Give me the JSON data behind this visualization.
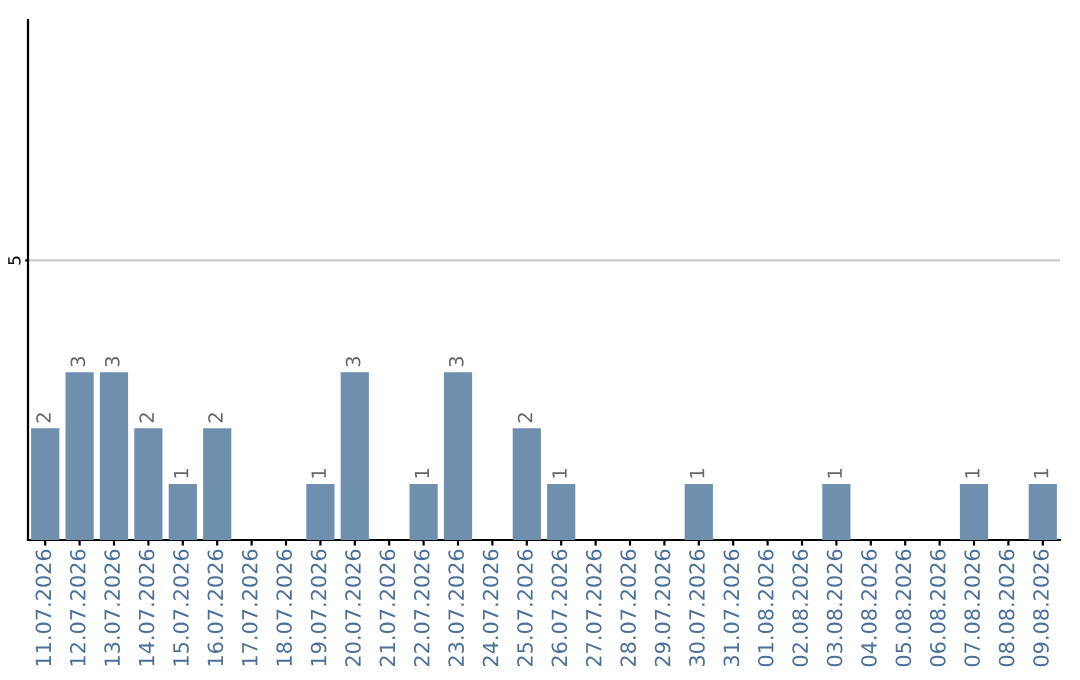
{
  "chart_data": {
    "type": "bar",
    "categories": [
      "11.07.2026",
      "12.07.2026",
      "13.07.2026",
      "14.07.2026",
      "15.07.2026",
      "16.07.2026",
      "17.07.2026",
      "18.07.2026",
      "19.07.2026",
      "20.07.2026",
      "21.07.2026",
      "22.07.2026",
      "23.07.2026",
      "24.07.2026",
      "25.07.2026",
      "26.07.2026",
      "27.07.2026",
      "28.07.2026",
      "29.07.2026",
      "30.07.2026",
      "31.07.2026",
      "01.08.2026",
      "02.08.2026",
      "03.08.2026",
      "04.08.2026",
      "05.08.2026",
      "06.08.2026",
      "07.08.2026",
      "08.08.2026",
      "09.08.2026"
    ],
    "values": [
      2,
      3,
      3,
      2,
      1,
      2,
      0,
      0,
      1,
      3,
      0,
      1,
      3,
      0,
      2,
      1,
      0,
      0,
      0,
      1,
      0,
      0,
      0,
      1,
      0,
      0,
      0,
      1,
      0,
      1
    ],
    "value_labels": [
      "2",
      "3",
      "3",
      "2",
      "1",
      "2",
      null,
      null,
      "1",
      "3",
      null,
      "1",
      "3",
      null,
      "2",
      "1",
      null,
      null,
      null,
      "1",
      null,
      null,
      null,
      "1",
      null,
      null,
      null,
      "1",
      null,
      "1"
    ],
    "color": "#6f8fae",
    "ylim": [
      0,
      9.3
    ],
    "yticks": [
      5
    ],
    "grid": "y"
  }
}
